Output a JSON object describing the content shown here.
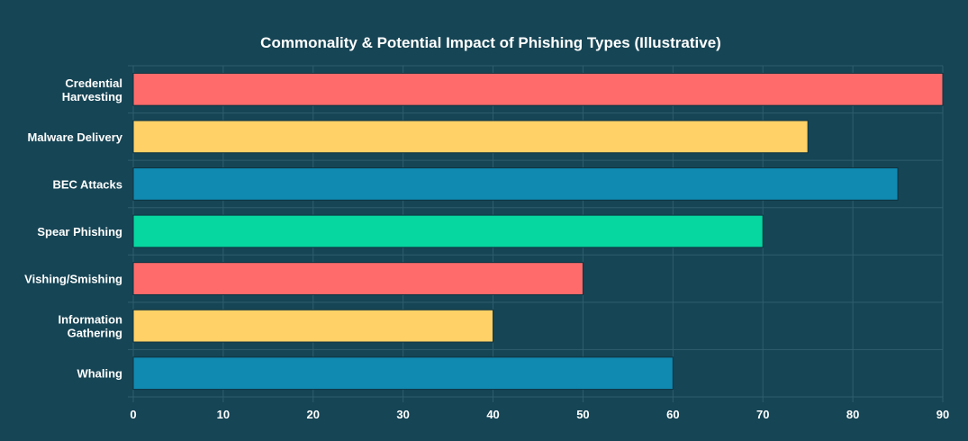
{
  "chart_data": {
    "type": "bar",
    "orientation": "horizontal",
    "title": "Commonality & Potential Impact of Phishing Types (Illustrative)",
    "xlabel": "",
    "ylabel": "",
    "xlim": [
      0,
      90
    ],
    "x_ticks": [
      0,
      10,
      20,
      30,
      40,
      50,
      60,
      70,
      80,
      90
    ],
    "grid": true,
    "categories": [
      [
        "Credential",
        "Harvesting"
      ],
      [
        "Malware Delivery"
      ],
      [
        "BEC Attacks"
      ],
      [
        "Spear Phishing"
      ],
      [
        "Vishing/Smishing"
      ],
      [
        "Information",
        "Gathering"
      ],
      [
        "Whaling"
      ]
    ],
    "values": [
      90,
      75,
      85,
      70,
      50,
      40,
      60
    ],
    "bar_colors": [
      "#ff6b6b",
      "#ffd166",
      "#118ab2",
      "#06d6a0",
      "#ff6b6b",
      "#ffd166",
      "#118ab2"
    ],
    "colors": {
      "background": "#164555",
      "grid": "#2f5e6e",
      "text": "#ffffff",
      "bar_border": "#0d3340"
    }
  }
}
